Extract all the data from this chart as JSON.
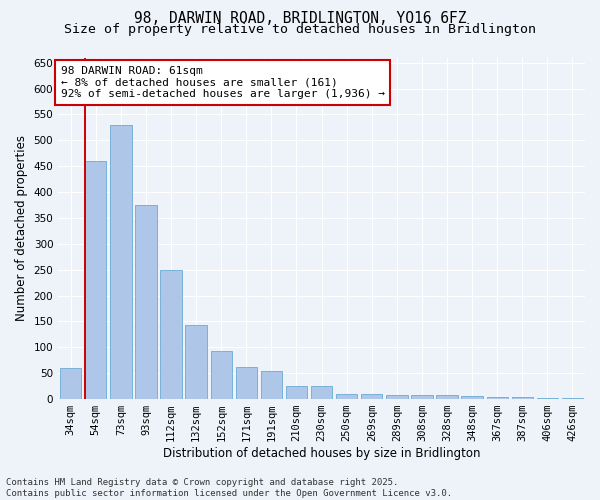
{
  "title_line1": "98, DARWIN ROAD, BRIDLINGTON, YO16 6FZ",
  "title_line2": "Size of property relative to detached houses in Bridlington",
  "xlabel": "Distribution of detached houses by size in Bridlington",
  "ylabel": "Number of detached properties",
  "categories": [
    "34sqm",
    "54sqm",
    "73sqm",
    "93sqm",
    "112sqm",
    "132sqm",
    "152sqm",
    "171sqm",
    "191sqm",
    "210sqm",
    "230sqm",
    "250sqm",
    "269sqm",
    "289sqm",
    "308sqm",
    "328sqm",
    "348sqm",
    "367sqm",
    "387sqm",
    "406sqm",
    "426sqm"
  ],
  "values": [
    60,
    460,
    530,
    375,
    250,
    143,
    93,
    62,
    55,
    25,
    25,
    10,
    10,
    8,
    7,
    7,
    5,
    4,
    4,
    3,
    3
  ],
  "bar_color": "#aec6e8",
  "bar_edge_color": "#6aaad4",
  "vline_x_index": 1,
  "vline_color": "#cc0000",
  "annotation_line1": "98 DARWIN ROAD: 61sqm",
  "annotation_line2": "← 8% of detached houses are smaller (161)",
  "annotation_line3": "92% of semi-detached houses are larger (1,936) →",
  "annotation_box_color": "#ffffff",
  "annotation_box_edge_color": "#cc0000",
  "ylim": [
    0,
    660
  ],
  "yticks": [
    0,
    50,
    100,
    150,
    200,
    250,
    300,
    350,
    400,
    450,
    500,
    550,
    600,
    650
  ],
  "footer_line1": "Contains HM Land Registry data © Crown copyright and database right 2025.",
  "footer_line2": "Contains public sector information licensed under the Open Government Licence v3.0.",
  "bg_color": "#eef2f9",
  "plot_bg_color": "#eef2f9",
  "grid_color": "#ffffff",
  "title_fontsize": 10.5,
  "subtitle_fontsize": 9.5,
  "annotation_fontsize": 8,
  "axis_label_fontsize": 8.5,
  "tick_fontsize": 7.5,
  "footer_fontsize": 6.5
}
